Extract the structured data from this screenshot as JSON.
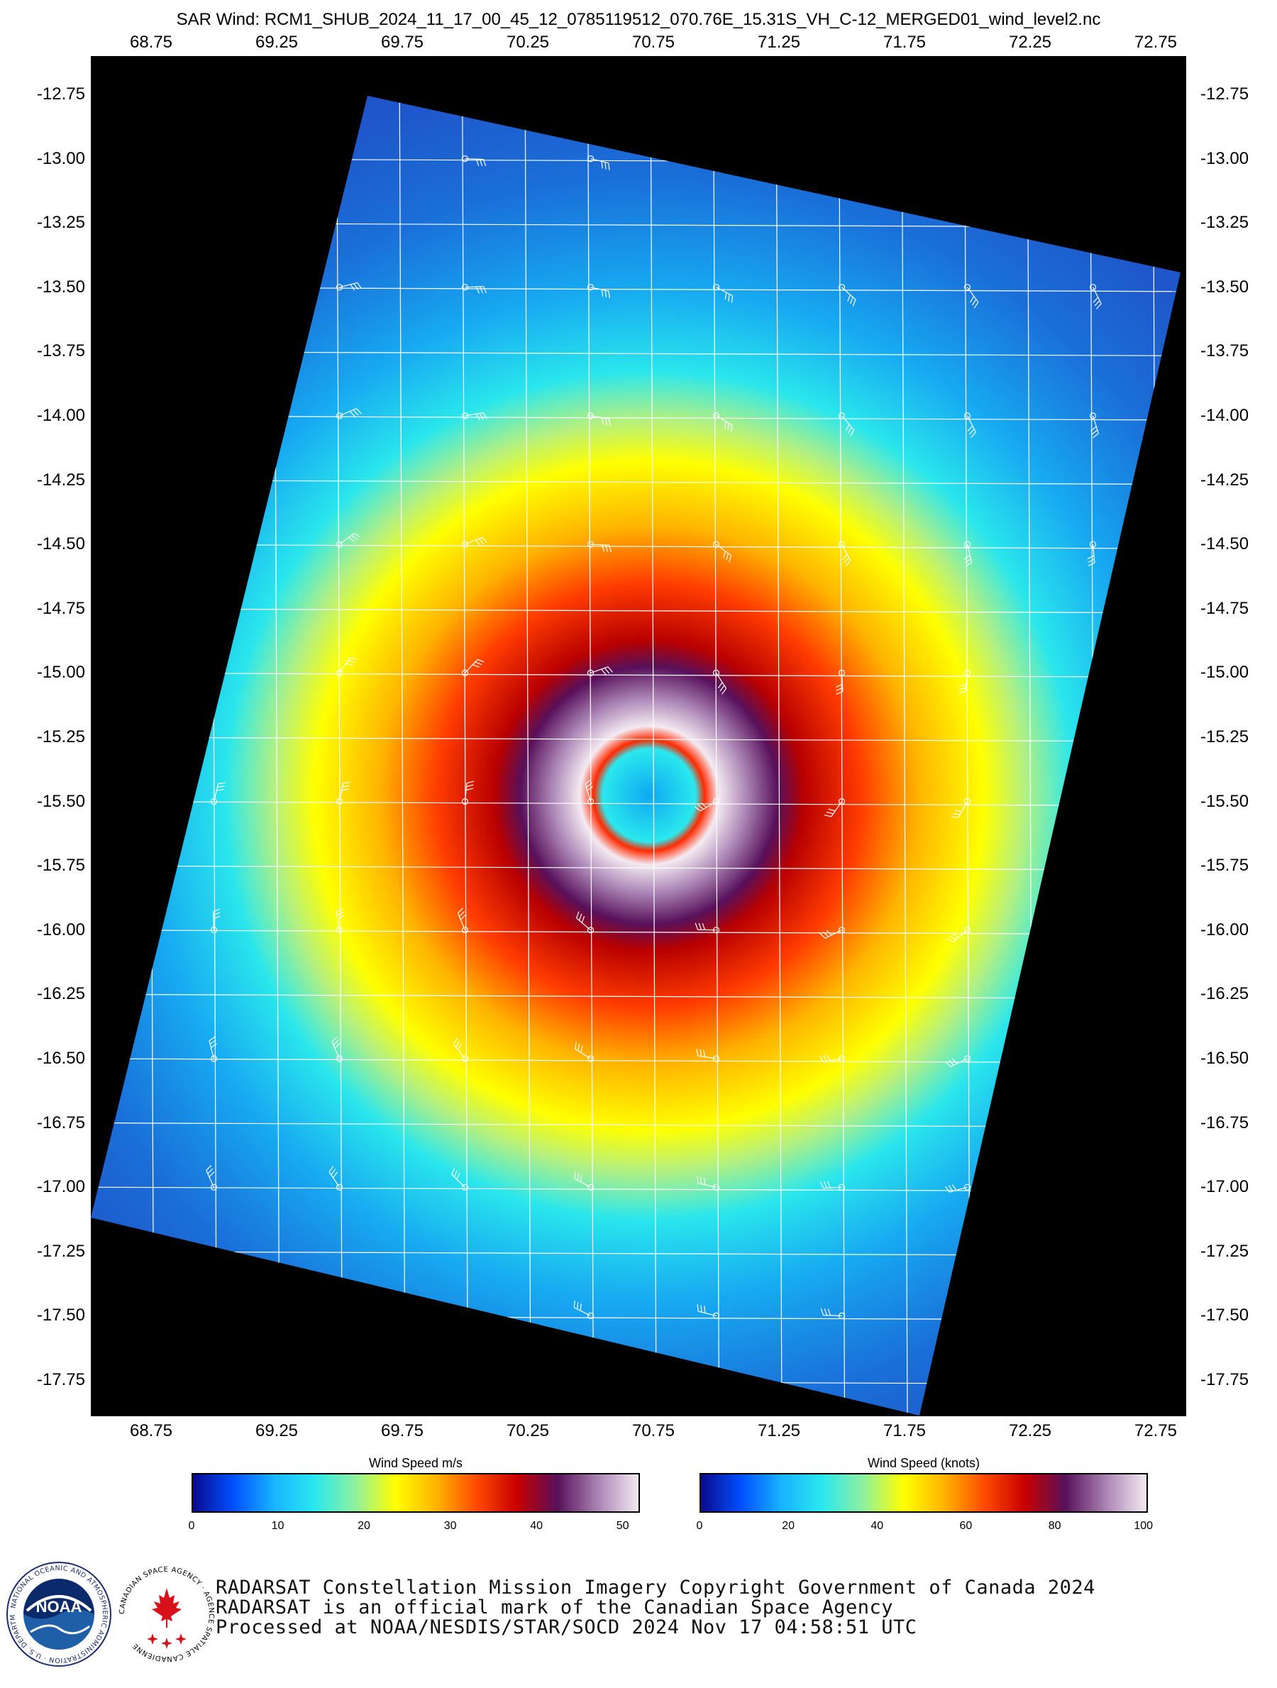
{
  "title": "SAR Wind: RCM1_SHUB_2024_11_17_00_45_12_0785119512_070.76E_15.31S_VH_C-12_MERGED01_wind_level2.nc",
  "map": {
    "longitude_ticks": [
      "68.75",
      "69.25",
      "69.75",
      "70.25",
      "70.75",
      "71.25",
      "71.75",
      "72.25",
      "72.75"
    ],
    "latitude_ticks": [
      "-12.75",
      "-13.00",
      "-13.25",
      "-13.50",
      "-13.75",
      "-14.00",
      "-14.25",
      "-14.50",
      "-14.75",
      "-15.00",
      "-15.25",
      "-15.50",
      "-15.75",
      "-16.00",
      "-16.25",
      "-16.50",
      "-16.75",
      "-17.00",
      "-17.25",
      "-17.50",
      "-17.75"
    ],
    "background_color": "#000000",
    "grid_color": "#ffffff",
    "storm_center": {
      "lon": 70.76,
      "lat": -15.31
    }
  },
  "colorbars": [
    {
      "title": "Wind Speed m/s",
      "ticks": [
        "0",
        "10",
        "20",
        "30",
        "40",
        "50"
      ],
      "range": [
        0,
        52
      ]
    },
    {
      "title": "Wind Speed (knots)",
      "ticks": [
        "0",
        "20",
        "40",
        "60",
        "80",
        "100"
      ],
      "range": [
        0,
        101
      ]
    }
  ],
  "colormap": [
    "#0a0a8c",
    "#0050ff",
    "#18b4ff",
    "#2ae8ee",
    "#8ef0a0",
    "#ffff00",
    "#ffb400",
    "#ff4a00",
    "#c80000",
    "#58105a",
    "#aa84b4",
    "#f4eaf2"
  ],
  "logos": [
    {
      "name": "NOAA",
      "ring_text": "NATIONAL OCEANIC AND ATMOSPHERIC ADMINISTRATION · U.S. DEPARTMENT OF COMMERCE"
    },
    {
      "name": "Canadian Space Agency",
      "ring_text": "CANADIAN SPACE AGENCY · AGENCE SPATIALE CANADIENNE"
    }
  ],
  "credits": [
    "RADARSAT Constellation Mission Imagery Copyright Government of Canada 2024",
    "RADARSAT is an official mark of the Canadian Space Agency",
    "Processed at NOAA/NESDIS/STAR/SOCD 2024 Nov 17 04:58:51 UTC"
  ]
}
